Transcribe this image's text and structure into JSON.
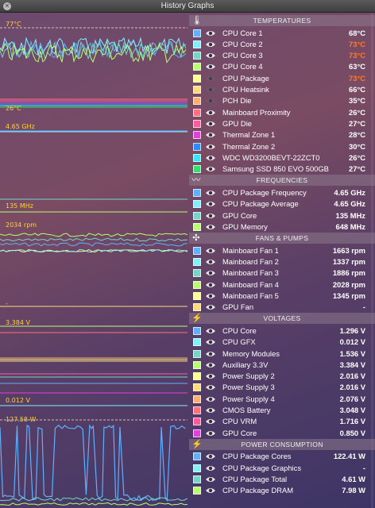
{
  "window": {
    "title": "History Graphs"
  },
  "graph_labels": {
    "temp_max": "77°C",
    "temp_min": "26°C",
    "freq_max": "4.65 GHz",
    "freq_min": "135 MHz",
    "fan_max": "2034 rpm",
    "fan_min": "-",
    "volt_max": "3.384 V",
    "volt_min": "0.012 V",
    "power_max": "127.58 W"
  },
  "sections": [
    {
      "title": "TEMPERATURES",
      "icon": "thermometer-icon",
      "icon_glyph": "🌡",
      "rows": [
        {
          "label": "CPU Core 1",
          "value": "68°C",
          "color": "#5fb0ff",
          "hot": false,
          "visible": true
        },
        {
          "label": "CPU Core 2",
          "value": "73°C",
          "color": "#7ff0ff",
          "hot": true,
          "visible": true
        },
        {
          "label": "CPU Core 3",
          "value": "73°C",
          "color": "#74d6c8",
          "hot": true,
          "visible": true
        },
        {
          "label": "CPU Core 4",
          "value": "63°C",
          "color": "#b8ff70",
          "hot": false,
          "visible": true
        },
        {
          "label": "CPU Package",
          "value": "73°C",
          "color": "#ffff8a",
          "hot": true,
          "visible": false
        },
        {
          "label": "CPU Heatsink",
          "value": "66°C",
          "color": "#ffd97a",
          "hot": false,
          "visible": false
        },
        {
          "label": "PCH Die",
          "value": "35°C",
          "color": "#ffb070",
          "hot": false,
          "visible": false
        },
        {
          "label": "Mainboard Proximity",
          "value": "26°C",
          "color": "#ff7080",
          "hot": false,
          "visible": true
        },
        {
          "label": "GPU Die",
          "value": "27°C",
          "color": "#ff5a9e",
          "hot": false,
          "visible": true
        },
        {
          "label": "Thermal Zone 1",
          "value": "28°C",
          "color": "#e040e0",
          "hot": false,
          "visible": true
        },
        {
          "label": "Thermal Zone 2",
          "value": "30°C",
          "color": "#2a8cff",
          "hot": false,
          "visible": true
        },
        {
          "label": "WDC WD3200BEVT-22ZCT0",
          "value": "26°C",
          "color": "#30e8ff",
          "hot": false,
          "visible": true
        },
        {
          "label": "Samsung SSD 850 EVO 500GB",
          "value": "27°C",
          "color": "#30e070",
          "hot": false,
          "visible": true
        }
      ]
    },
    {
      "title": "FREQUENCIES",
      "icon": "waveform-icon",
      "icon_glyph": "〰",
      "rows": [
        {
          "label": "CPU Package Frequency",
          "value": "4.65 GHz",
          "color": "#5fb0ff",
          "hot": false,
          "visible": true
        },
        {
          "label": "CPU Package Average",
          "value": "4.65 GHz",
          "color": "#7ff0ff",
          "hot": false,
          "visible": true
        },
        {
          "label": "GPU Core",
          "value": "135 MHz",
          "color": "#74d6c8",
          "hot": false,
          "visible": true
        },
        {
          "label": "GPU Memory",
          "value": "648 MHz",
          "color": "#b8ff70",
          "hot": false,
          "visible": true
        }
      ]
    },
    {
      "title": "FANS & PUMPS",
      "icon": "fan-icon",
      "icon_glyph": "✣",
      "rows": [
        {
          "label": "Mainboard Fan 1",
          "value": "1663 rpm",
          "color": "#5fb0ff",
          "hot": false,
          "visible": true
        },
        {
          "label": "Mainboard Fan 2",
          "value": "1337 rpm",
          "color": "#7ff0ff",
          "hot": false,
          "visible": true
        },
        {
          "label": "Mainboard Fan 3",
          "value": "1886 rpm",
          "color": "#74d6c8",
          "hot": false,
          "visible": true
        },
        {
          "label": "Mainboard Fan 4",
          "value": "2028 rpm",
          "color": "#b8ff70",
          "hot": false,
          "visible": true
        },
        {
          "label": "Mainboard Fan 5",
          "value": "1345 rpm",
          "color": "#ffff8a",
          "hot": false,
          "visible": true
        },
        {
          "label": "GPU Fan",
          "value": "-",
          "color": "#ffd97a",
          "hot": false,
          "visible": true
        }
      ]
    },
    {
      "title": "VOLTAGES",
      "icon": "lightning-icon",
      "icon_glyph": "⚡",
      "rows": [
        {
          "label": "CPU Core",
          "value": "1.296 V",
          "color": "#5fb0ff",
          "hot": false,
          "visible": true
        },
        {
          "label": "CPU GFX",
          "value": "0.012 V",
          "color": "#7ff0ff",
          "hot": false,
          "visible": true
        },
        {
          "label": "Memory Modules",
          "value": "1.536 V",
          "color": "#74d6c8",
          "hot": false,
          "visible": true
        },
        {
          "label": "Auxiliary 3.3V",
          "value": "3.384 V",
          "color": "#b8ff70",
          "hot": false,
          "visible": true
        },
        {
          "label": "Power Supply 2",
          "value": "2.016 V",
          "color": "#ffff8a",
          "hot": false,
          "visible": true
        },
        {
          "label": "Power Supply 3",
          "value": "2.016 V",
          "color": "#ffd97a",
          "hot": false,
          "visible": true
        },
        {
          "label": "Power Supply 4",
          "value": "2.076 V",
          "color": "#ffb070",
          "hot": false,
          "visible": true
        },
        {
          "label": "CMOS Battery",
          "value": "3.048 V",
          "color": "#ff7080",
          "hot": false,
          "visible": true
        },
        {
          "label": "CPU VRM",
          "value": "1.716 V",
          "color": "#ff5a9e",
          "hot": false,
          "visible": true
        },
        {
          "label": "GPU Core",
          "value": "0.850 V",
          "color": "#e040e0",
          "hot": false,
          "visible": true
        }
      ]
    },
    {
      "title": "POWER CONSUMPTION",
      "icon": "lightning-icon",
      "icon_glyph": "⚡",
      "rows": [
        {
          "label": "CPU Package Cores",
          "value": "122.41 W",
          "color": "#5fb0ff",
          "hot": false,
          "visible": true
        },
        {
          "label": "CPU Package Graphics",
          "value": "-",
          "color": "#7ff0ff",
          "hot": false,
          "visible": true
        },
        {
          "label": "CPU Package Total",
          "value": "4.61 W",
          "color": "#74d6c8",
          "hot": false,
          "visible": true
        },
        {
          "label": "CPU Package DRAM",
          "value": "7.98 W",
          "color": "#b8ff70",
          "hot": false,
          "visible": true
        }
      ]
    }
  ]
}
